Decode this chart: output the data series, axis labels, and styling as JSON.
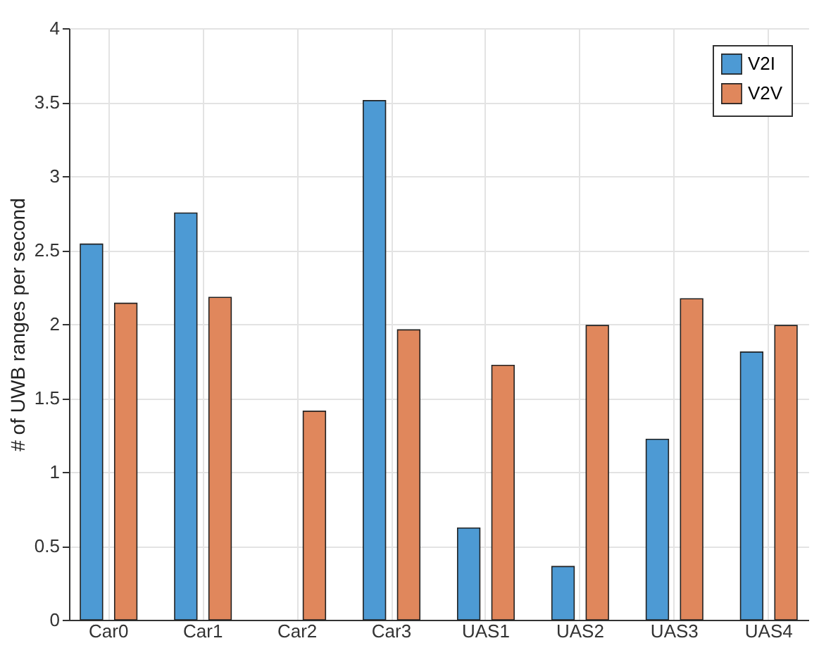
{
  "chart_data": {
    "type": "bar",
    "ylabel": "# of UWB ranges per second",
    "categories": [
      "Car0",
      "Car1",
      "Car2",
      "Car3",
      "UAS1",
      "UAS2",
      "UAS3",
      "UAS4"
    ],
    "series": [
      {
        "name": "V2I",
        "color": "#4d9ad4",
        "values": [
          2.54,
          2.75,
          0,
          3.51,
          0.62,
          0.36,
          1.22,
          1.81
        ]
      },
      {
        "name": "V2V",
        "color": "#e0875c",
        "values": [
          2.14,
          2.18,
          1.41,
          1.96,
          1.72,
          1.99,
          2.17,
          1.99
        ]
      }
    ],
    "ylim": [
      0,
      4
    ],
    "yticks": [
      0,
      0.5,
      1,
      1.5,
      2,
      2.5,
      3,
      3.5,
      4
    ],
    "grid": true,
    "legend": "top right"
  }
}
